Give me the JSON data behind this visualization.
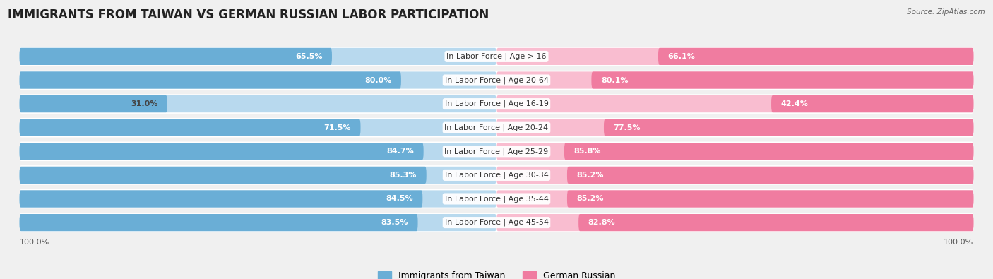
{
  "title": "IMMIGRANTS FROM TAIWAN VS GERMAN RUSSIAN LABOR PARTICIPATION",
  "source": "Source: ZipAtlas.com",
  "categories": [
    "In Labor Force | Age > 16",
    "In Labor Force | Age 20-64",
    "In Labor Force | Age 16-19",
    "In Labor Force | Age 20-24",
    "In Labor Force | Age 25-29",
    "In Labor Force | Age 30-34",
    "In Labor Force | Age 35-44",
    "In Labor Force | Age 45-54"
  ],
  "taiwan_values": [
    65.5,
    80.0,
    31.0,
    71.5,
    84.7,
    85.3,
    84.5,
    83.5
  ],
  "german_values": [
    66.1,
    80.1,
    42.4,
    77.5,
    85.8,
    85.2,
    85.2,
    82.8
  ],
  "taiwan_color": "#6AAED6",
  "taiwan_color_light": "#B8D9EE",
  "german_color": "#F07CA0",
  "german_color_light": "#F9BDD0",
  "bg_color": "#f0f0f0",
  "row_bg_color": "#e8e8e8",
  "row_bg_white": "#f8f8f8",
  "legend_taiwan": "Immigrants from Taiwan",
  "legend_german": "German Russian",
  "title_fontsize": 12,
  "label_fontsize": 8,
  "value_fontsize": 8,
  "axis_label_left": "100.0%",
  "axis_label_right": "100.0%",
  "max_value": 100.0
}
